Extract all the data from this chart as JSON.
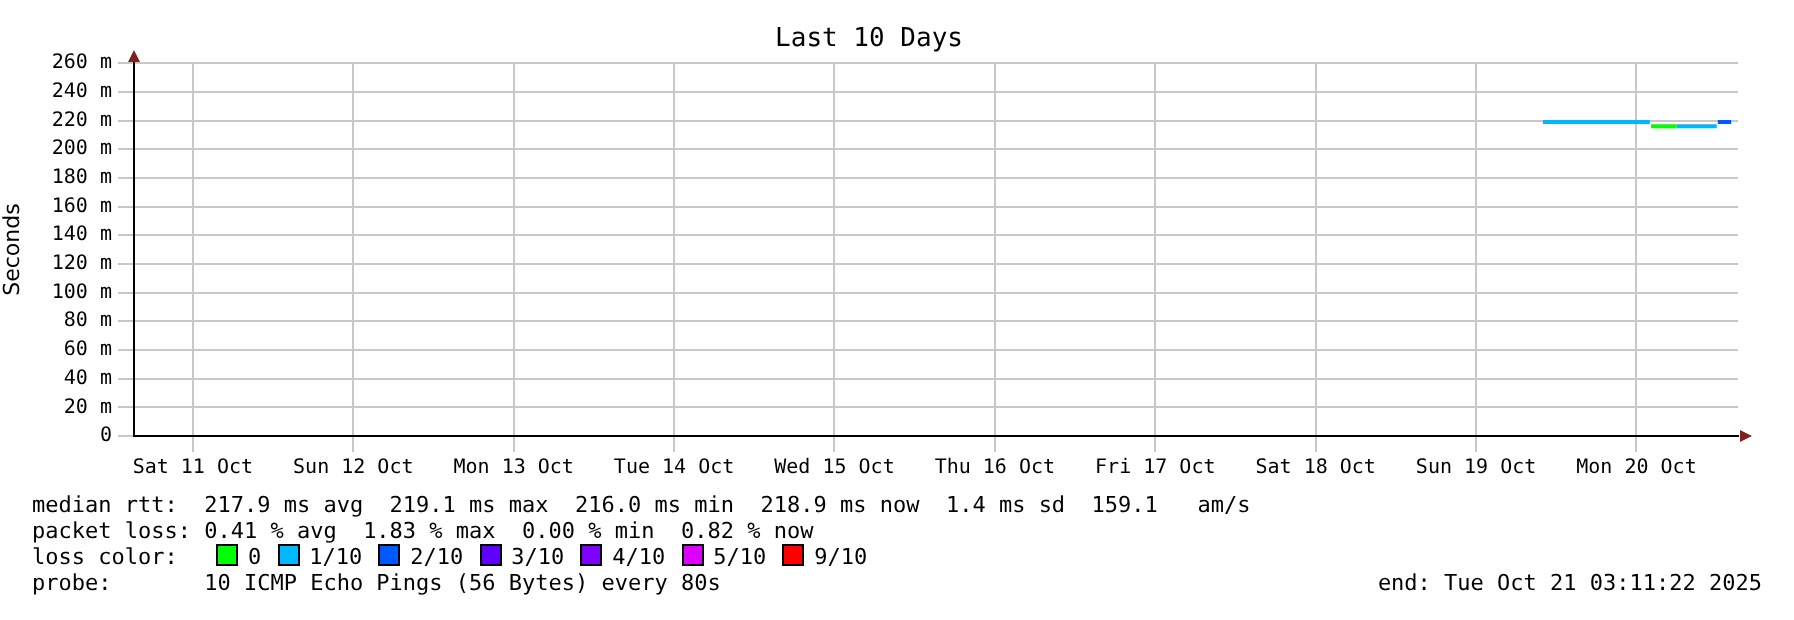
{
  "chart_data": {
    "type": "line",
    "title": "Last 10 Days",
    "ylabel": "Seconds",
    "legend_title": "loss color:",
    "x": [
      "2025-10-19T22:00",
      "2025-10-20T04:00",
      "2025-10-20T10:00",
      "2025-10-20T14:00",
      "2025-10-20T14:10",
      "2025-10-20T18:00",
      "2025-10-20T22:00",
      "2025-10-21T00:00",
      "2025-10-21T00:10",
      "2025-10-21T02:10"
    ],
    "series": [
      {
        "name": "0",
        "color": "#00ff00",
        "values": [
          null,
          null,
          null,
          null,
          216,
          216,
          null,
          null,
          null,
          null
        ]
      },
      {
        "name": "1/10",
        "color": "#00b8ff",
        "values": [
          219,
          219,
          219,
          219,
          null,
          216,
          216,
          216,
          null,
          null
        ]
      },
      {
        "name": "2/10",
        "color": "#0059ff",
        "values": [
          null,
          null,
          null,
          null,
          null,
          null,
          null,
          null,
          219,
          219
        ]
      },
      {
        "name": "3/10",
        "color": "#5e00ff",
        "values": [
          null,
          null,
          null,
          null,
          null,
          null,
          null,
          null,
          null,
          null
        ]
      },
      {
        "name": "4/10",
        "color": "#7e00ff",
        "values": [
          null,
          null,
          null,
          null,
          null,
          null,
          null,
          null,
          null,
          null
        ]
      },
      {
        "name": "5/10",
        "color": "#dd00ff",
        "values": [
          null,
          null,
          null,
          null,
          null,
          null,
          null,
          null,
          null,
          null
        ]
      },
      {
        "name": "9/10",
        "color": "#ff0000",
        "values": [
          null,
          null,
          null,
          null,
          null,
          null,
          null,
          null,
          null,
          null
        ]
      }
    ],
    "xlim": [
      "2025-10-11T03:11:22",
      "2025-10-21T03:11:22"
    ],
    "xticks": [
      {
        "value": "2025-10-11T12:00",
        "label": "Sat 11 Oct"
      },
      {
        "value": "2025-10-12T12:00",
        "label": "Sun 12 Oct"
      },
      {
        "value": "2025-10-13T12:00",
        "label": "Mon 13 Oct"
      },
      {
        "value": "2025-10-14T12:00",
        "label": "Tue 14 Oct"
      },
      {
        "value": "2025-10-15T12:00",
        "label": "Wed 15 Oct"
      },
      {
        "value": "2025-10-16T12:00",
        "label": "Thu 16 Oct"
      },
      {
        "value": "2025-10-17T12:00",
        "label": "Fri 17 Oct"
      },
      {
        "value": "2025-10-18T12:00",
        "label": "Sat 18 Oct"
      },
      {
        "value": "2025-10-19T12:00",
        "label": "Sun 19 Oct"
      },
      {
        "value": "2025-10-20T12:00",
        "label": "Mon 20 Oct"
      }
    ],
    "ylim": [
      0,
      260
    ],
    "yticks": [
      0,
      {
        "value": 20,
        "label": "20 m"
      },
      {
        "value": 40,
        "label": "40 m"
      },
      {
        "value": 60,
        "label": "60 m"
      },
      {
        "value": 80,
        "label": "80 m"
      },
      {
        "value": 100,
        "label": "100 m"
      },
      {
        "value": 120,
        "label": "120 m"
      },
      {
        "value": 140,
        "label": "140 m"
      },
      {
        "value": 160,
        "label": "160 m"
      },
      {
        "value": 180,
        "label": "180 m"
      },
      {
        "value": 200,
        "label": "200 m"
      },
      {
        "value": 220,
        "label": "220 m"
      },
      {
        "value": 240,
        "label": "240 m"
      },
      {
        "value": 260,
        "label": "260 m"
      }
    ],
    "grid": true,
    "legend": "bottom",
    "marker": "none",
    "line_style": "solid",
    "annotations": [
      "median rtt:  217.9 ms avg  219.1 ms max  216.0 ms min  218.9 ms now  1.4 ms sd  159.1   am/s",
      "packet loss: 0.41 % avg  1.83 % max  0.00 % min  0.82 % now",
      "probe:       10 ICMP Echo Pings (56 Bytes) every 80s",
      "end: Tue Oct 21 03:11:22 2025"
    ]
  }
}
